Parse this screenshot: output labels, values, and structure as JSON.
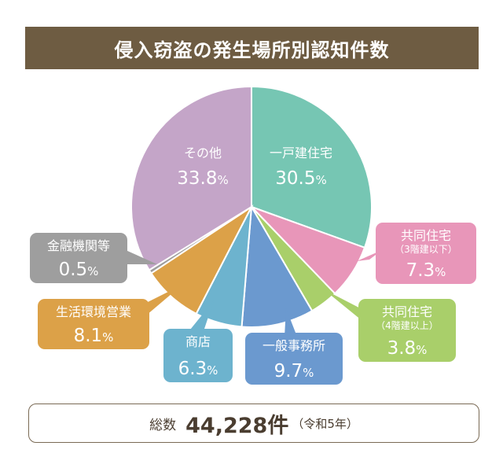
{
  "title": "侵入窃盗の発生場所別認知件数",
  "total": {
    "label": "総数",
    "value": "44,228件",
    "note": "（令和5年）"
  },
  "chart_data": {
    "type": "pie",
    "title": "侵入窃盗の発生場所別認知件数",
    "unit": "%",
    "slices": [
      {
        "label": "一戸建住宅",
        "sublabel": "",
        "value": 30.5,
        "value_text": "30.5",
        "color": "#76c6b3"
      },
      {
        "label": "共同住宅",
        "sublabel": "（3階建以下）",
        "value": 7.3,
        "value_text": "7.3",
        "color": "#e896b9"
      },
      {
        "label": "共同住宅",
        "sublabel": "（4階建以上）",
        "value": 3.8,
        "value_text": "3.8",
        "color": "#a9cf6a"
      },
      {
        "label": "一般事務所",
        "sublabel": "",
        "value": 9.7,
        "value_text": "9.7",
        "color": "#6b99cf"
      },
      {
        "label": "商店",
        "sublabel": "",
        "value": 6.3,
        "value_text": "6.3",
        "color": "#6db3ce"
      },
      {
        "label": "生活環境営業",
        "sublabel": "",
        "value": 8.1,
        "value_text": "8.1",
        "color": "#dca148"
      },
      {
        "label": "金融機関等",
        "sublabel": "",
        "value": 0.5,
        "value_text": "0.5",
        "color": "#9e9e9e"
      },
      {
        "label": "その他",
        "sublabel": "",
        "value": 33.8,
        "value_text": "33.8",
        "color": "#c4a5c8"
      }
    ]
  }
}
